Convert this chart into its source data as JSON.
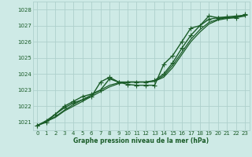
{
  "title": "Graphe pression niveau de la mer (hPa)",
  "background_color": "#ceeae6",
  "grid_color": "#aed0cc",
  "line_color": "#1a5c28",
  "x_ticks": [
    0,
    1,
    2,
    3,
    4,
    5,
    6,
    7,
    8,
    9,
    10,
    11,
    12,
    13,
    14,
    15,
    16,
    17,
    18,
    19,
    20,
    21,
    22,
    23
  ],
  "xlim": [
    -0.5,
    23.5
  ],
  "ylim": [
    1020.5,
    1028.5
  ],
  "y_ticks": [
    1021,
    1022,
    1023,
    1024,
    1025,
    1026,
    1027,
    1028
  ],
  "series": [
    {
      "x": [
        0,
        1,
        2,
        3,
        4,
        5,
        6,
        7,
        8,
        9,
        10,
        11,
        12,
        13,
        14,
        15,
        16,
        17,
        18,
        19,
        20,
        21,
        22,
        23
      ],
      "y": [
        1020.8,
        1021.0,
        1021.5,
        1021.9,
        1022.2,
        1022.4,
        1022.6,
        1023.5,
        1023.8,
        1023.5,
        1023.35,
        1023.3,
        1023.3,
        1023.3,
        1024.6,
        1025.15,
        1026.0,
        1026.85,
        1027.0,
        1027.6,
        1027.5,
        1027.5,
        1027.5,
        1027.7
      ],
      "marker": "+",
      "markersize": 4.0,
      "linewidth": 1.0
    },
    {
      "x": [
        0,
        1,
        2,
        3,
        4,
        5,
        6,
        7,
        8,
        9,
        10,
        11,
        12,
        13,
        14,
        15,
        16,
        17,
        18,
        19,
        20,
        21,
        22,
        23
      ],
      "y": [
        1020.8,
        1021.05,
        1021.3,
        1021.7,
        1022.0,
        1022.3,
        1022.6,
        1022.9,
        1023.2,
        1023.4,
        1023.5,
        1023.5,
        1023.5,
        1023.55,
        1023.8,
        1024.4,
        1025.2,
        1026.0,
        1026.6,
        1027.1,
        1027.35,
        1027.45,
        1027.5,
        1027.6
      ],
      "marker": null,
      "markersize": 0,
      "linewidth": 0.9
    },
    {
      "x": [
        0,
        1,
        2,
        3,
        4,
        5,
        6,
        7,
        8,
        9,
        10,
        11,
        12,
        13,
        14,
        15,
        16,
        17,
        18,
        19,
        20,
        21,
        22,
        23
      ],
      "y": [
        1020.8,
        1021.05,
        1021.35,
        1021.75,
        1022.1,
        1022.4,
        1022.7,
        1023.0,
        1023.3,
        1023.45,
        1023.5,
        1023.5,
        1023.5,
        1023.55,
        1023.9,
        1024.55,
        1025.35,
        1026.15,
        1026.75,
        1027.2,
        1027.4,
        1027.5,
        1027.55,
        1027.65
      ],
      "marker": null,
      "markersize": 0,
      "linewidth": 0.9
    },
    {
      "x": [
        0,
        1,
        2,
        3,
        4,
        5,
        6,
        7,
        8,
        9,
        10,
        11,
        12,
        13,
        14,
        15,
        16,
        17,
        18,
        19,
        20,
        21,
        22,
        23
      ],
      "y": [
        1020.8,
        1021.1,
        1021.5,
        1022.0,
        1022.3,
        1022.6,
        1022.75,
        1023.0,
        1023.7,
        1023.5,
        1023.5,
        1023.5,
        1023.5,
        1023.6,
        1024.0,
        1024.7,
        1025.6,
        1026.4,
        1027.0,
        1027.4,
        1027.5,
        1027.55,
        1027.6,
        1027.65
      ],
      "marker": "+",
      "markersize": 4.0,
      "linewidth": 1.0
    }
  ]
}
